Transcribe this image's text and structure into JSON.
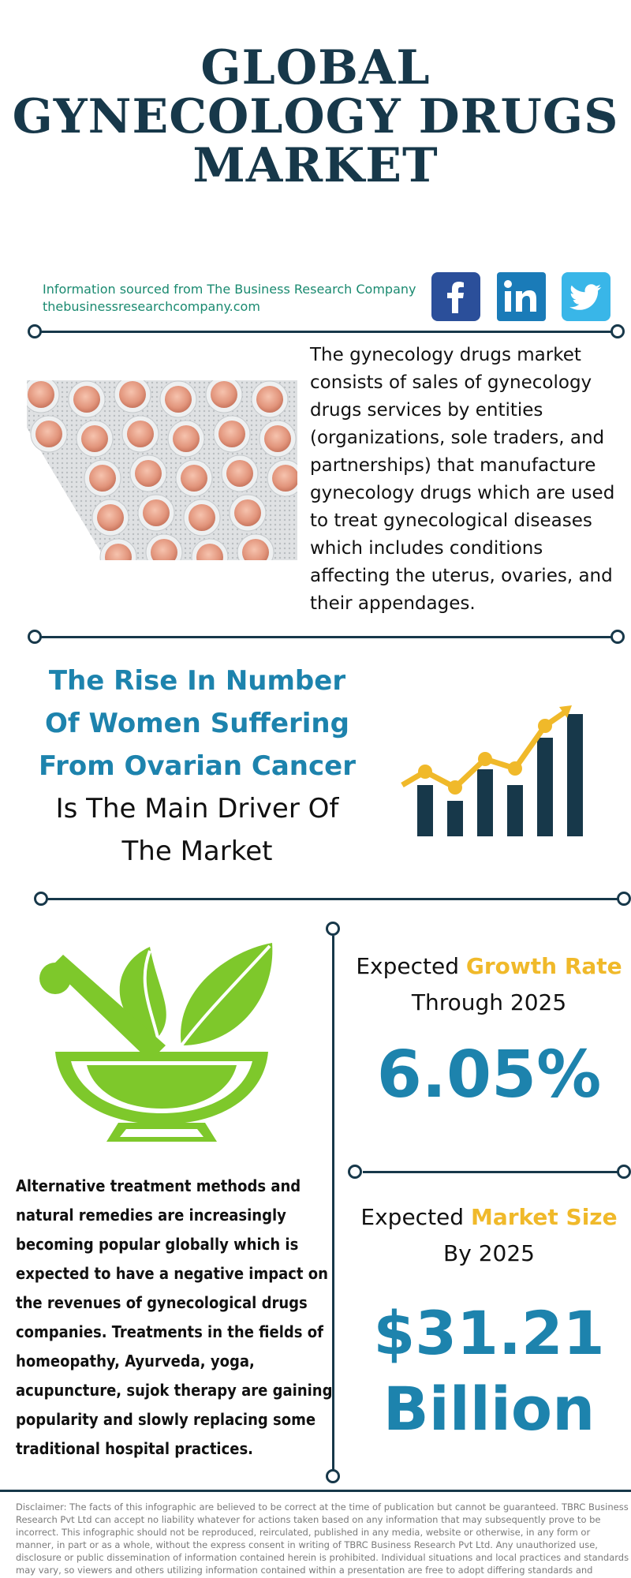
{
  "title": {
    "line1": "GLOBAL",
    "line2": "GYNECOLOGY DRUGS",
    "line3": "MARKET"
  },
  "source": {
    "line1": "Information sourced from The Business Research Company",
    "line2": "thebusinessresearchcompany.com"
  },
  "social": [
    {
      "icon": "facebook-icon",
      "color": "#2b4f9a"
    },
    {
      "icon": "linkedin-icon",
      "color": "#1a7bb8"
    },
    {
      "icon": "twitter-icon",
      "color": "#39b6e8"
    }
  ],
  "intro": {
    "text": "The gynecology drugs market consists of sales of gynecology drugs services by entities (organizations, sole traders, and partnerships) that manufacture gynecology drugs which are used to treat gynecological diseases which includes conditions affecting the uterus, ovaries, and their appendages."
  },
  "driver": {
    "highlight": "The Rise In Number Of Women Suffering From Ovarian Cancer",
    "rest": "Is The Main Driver Of The Market"
  },
  "alternative": {
    "text": "Alternative treatment methods and natural remedies are increasingly becoming popular globally which is expected to have a negative impact on the revenues of gynecological drugs companies. Treatments in the fields of homeopathy, Ayurveda, yoga, acupuncture, sujok therapy are gaining popularity and slowly replacing some traditional hospital practices."
  },
  "growth": {
    "prefix": "Expected ",
    "accent": "Growth Rate",
    "suffix": "Through 2025",
    "value": "6.05%"
  },
  "market_size": {
    "prefix": "Expected ",
    "accent": "Market Size",
    "suffix": "By 2025",
    "value_line1": "$31.21",
    "value_line2": "Billion"
  },
  "disclaimer": "Disclaimer: The facts of this infographic are believed to be correct at the time of publication but cannot be guaranteed. TBRC Business Research Pvt Ltd can accept no liability whatever for actions taken based on any information that may subsequently prove to be incorrect. This infographic should not be reproduced, reirculated, published in any media, website or otherwise, in any form or manner, in part or as a whole, without the express consent in writing of TBRC Business Research Pvt Ltd. Any unauthorized use, disclosure or public dissemination of information contained herein is prohibited. Individual situations and local practices and standards may vary, so viewers and others utilizing information contained within a presentation are free to adopt differing standards and approaches as they see fit.",
  "colors": {
    "navy": "#17384a",
    "blue_accent": "#1d83ad",
    "gold_accent": "#f0b92a",
    "green": "#7ec82b",
    "source_green": "#1a8a70"
  }
}
